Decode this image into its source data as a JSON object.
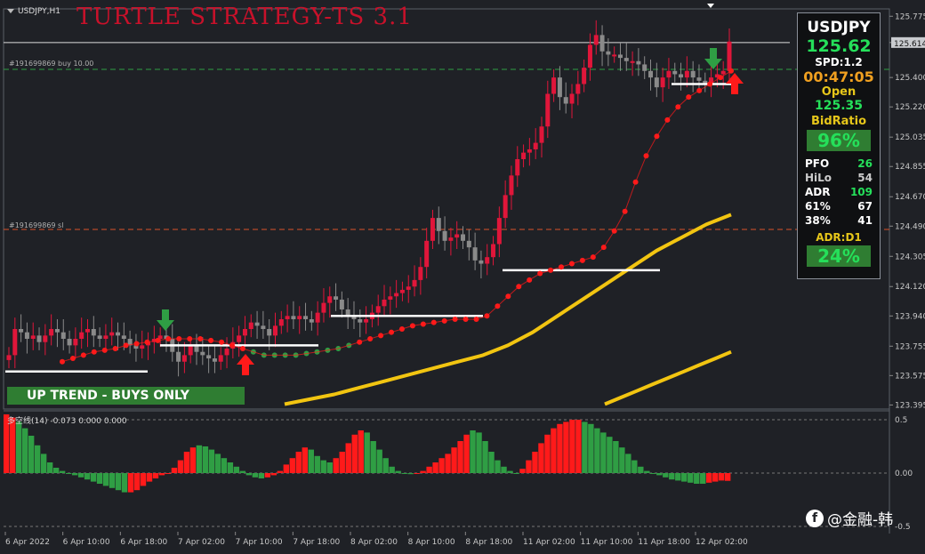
{
  "window": {
    "symbol_title": "USDJPY,H1",
    "strategy_title": "TURTLE STRATEGY-TS 3.1"
  },
  "lines": {
    "buy_label": "#191699869 buy 10.00",
    "sl_label": "#191699869 sl"
  },
  "uptrend_label": "UP TREND - BUYS ONLY",
  "panel": {
    "symbol": "USDJPY",
    "price": "125.62",
    "spread": "SPD:1.2",
    "timer": "00:47:05",
    "open_label": "Open",
    "open_value": "125.35",
    "bidratio_label": "BidRatio",
    "bidratio_value": "96%",
    "rows": [
      {
        "k": "PFO",
        "v": "26",
        "color": "#25e05a"
      },
      {
        "k": "HiLo",
        "v": "54",
        "color": "#cccccc"
      },
      {
        "k": "ADR",
        "v": "109",
        "color": "#25e05a"
      },
      {
        "k": "61%",
        "v": "67",
        "color": "#ffffff"
      },
      {
        "k": "38%",
        "v": "41",
        "color": "#ffffff"
      }
    ],
    "adr_label": "ADR:D1",
    "adr_value": "24%"
  },
  "indicator": {
    "label": "多空线(14) -0.073 0.000 0.000"
  },
  "watermark": {
    "text": "@金融-韩"
  },
  "colors": {
    "bull": "#e0163a",
    "bear": "#8a8a8a",
    "trail": "#ff1a1a",
    "ma": "#f2c511",
    "buy_line": "#2f9e44",
    "sl_line": "#d9532b"
  },
  "chart_data": {
    "type": "candlestick",
    "title": "TURTLE STRATEGY-TS 3.1",
    "symbol": "USDJPY",
    "timeframe": "H1",
    "y_ticks": [
      125.775,
      125.614,
      125.4,
      125.22,
      125.035,
      124.855,
      124.67,
      124.49,
      124.305,
      124.12,
      123.94,
      123.755,
      123.575,
      123.395
    ],
    "current_price_tag": 125.614,
    "x_labels": [
      "6 Apr 2022",
      "6 Apr 10:00",
      "6 Apr 18:00",
      "7 Apr 02:00",
      "7 Apr 10:00",
      "7 Apr 18:00",
      "8 Apr 02:00",
      "8 Apr 10:00",
      "8 Apr 18:00",
      "11 Apr 02:00",
      "11 Apr 10:00",
      "11 Apr 18:00",
      "12 Apr 02:00"
    ],
    "buy_level": 125.45,
    "sl_level": 124.47,
    "closes": [
      123.7,
      123.86,
      123.84,
      123.8,
      123.82,
      123.78,
      123.82,
      123.86,
      123.84,
      123.8,
      123.76,
      123.8,
      123.84,
      123.86,
      123.82,
      123.8,
      123.82,
      123.84,
      123.82,
      123.8,
      123.76,
      123.74,
      123.76,
      123.78,
      123.8,
      123.82,
      123.8,
      123.72,
      123.66,
      123.7,
      123.76,
      123.72,
      123.7,
      123.68,
      123.66,
      123.7,
      123.74,
      123.78,
      123.82,
      123.86,
      123.9,
      123.88,
      123.86,
      123.82,
      123.88,
      123.92,
      123.94,
      123.92,
      123.94,
      123.92,
      123.9,
      123.96,
      124.02,
      124.06,
      124.04,
      123.98,
      123.94,
      123.92,
      123.9,
      123.92,
      123.96,
      124.0,
      124.04,
      124.06,
      124.08,
      124.1,
      124.12,
      124.16,
      124.24,
      124.4,
      124.54,
      124.46,
      124.4,
      124.42,
      124.44,
      124.4,
      124.36,
      124.28,
      124.26,
      124.3,
      124.38,
      124.54,
      124.68,
      124.8,
      124.9,
      124.94,
      124.96,
      125.0,
      125.1,
      125.3,
      125.4,
      125.28,
      125.24,
      125.3,
      125.36,
      125.46,
      125.6,
      125.66,
      125.56,
      125.54,
      125.54,
      125.52,
      125.5,
      125.5,
      125.48,
      125.44,
      125.4,
      125.34,
      125.4,
      125.44,
      125.42,
      125.4,
      125.44,
      125.4,
      125.38,
      125.36,
      125.4,
      125.42,
      125.44,
      125.62
    ],
    "trail_stop": [
      123.66,
      123.68,
      123.7,
      123.72,
      123.73,
      123.74,
      123.76,
      123.77,
      123.78,
      123.79,
      123.8,
      123.8,
      123.8,
      123.8,
      123.79,
      123.78,
      123.76,
      123.74,
      123.72,
      123.7,
      123.7,
      123.7,
      123.7,
      123.71,
      123.72,
      123.73,
      123.74,
      123.76,
      123.78,
      123.8,
      123.82,
      123.84,
      123.86,
      123.88,
      123.89,
      123.9,
      123.91,
      123.92,
      123.92,
      123.92,
      123.94,
      124.0,
      124.06,
      124.12,
      124.16,
      124.2,
      124.22,
      124.24,
      124.26,
      124.28,
      124.3,
      124.36,
      124.46,
      124.58,
      124.76,
      124.92,
      125.04,
      125.14,
      125.22,
      125.28,
      125.32,
      125.36,
      125.4,
      125.44
    ],
    "ma_fast": [
      123.4,
      123.43,
      123.46,
      123.5,
      123.54,
      123.58,
      123.62,
      123.66,
      123.7,
      123.76,
      123.84,
      123.94,
      124.04,
      124.14,
      124.24,
      124.34,
      124.42,
      124.5,
      124.56
    ],
    "ma_slow": [
      123.4,
      123.44,
      123.48,
      123.52,
      123.56,
      123.6,
      123.64,
      123.68,
      123.72
    ],
    "oscillator": {
      "name": "多空线(14)",
      "values_shown": [
        -0.073,
        0.0,
        0.0
      ],
      "levels": [
        0.5,
        0.0,
        -0.5
      ],
      "ylim": [
        -0.55,
        0.55
      ],
      "bars": [
        0.55,
        0.52,
        0.48,
        0.42,
        0.35,
        0.26,
        0.18,
        0.1,
        0.05,
        0.02,
        0.0,
        -0.02,
        -0.04,
        -0.06,
        -0.08,
        -0.1,
        -0.12,
        -0.14,
        -0.16,
        -0.18,
        -0.18,
        -0.16,
        -0.12,
        -0.08,
        -0.05,
        -0.02,
        0.0,
        0.05,
        0.12,
        0.2,
        0.24,
        0.26,
        0.25,
        0.22,
        0.18,
        0.14,
        0.1,
        0.06,
        0.02,
        -0.02,
        -0.04,
        -0.05,
        -0.04,
        -0.02,
        0.02,
        0.08,
        0.14,
        0.2,
        0.24,
        0.22,
        0.16,
        0.12,
        0.1,
        0.14,
        0.2,
        0.28,
        0.36,
        0.4,
        0.38,
        0.3,
        0.22,
        0.14,
        0.06,
        0.02,
        0.0,
        -0.01,
        0.0,
        0.02,
        0.06,
        0.1,
        0.14,
        0.18,
        0.24,
        0.3,
        0.36,
        0.4,
        0.38,
        0.3,
        0.2,
        0.12,
        0.06,
        0.02,
        0.0,
        0.04,
        0.12,
        0.2,
        0.28,
        0.36,
        0.42,
        0.46,
        0.48,
        0.5,
        0.5,
        0.48,
        0.46,
        0.42,
        0.38,
        0.34,
        0.3,
        0.24,
        0.18,
        0.12,
        0.06,
        0.02,
        0.0,
        -0.02,
        -0.04,
        -0.06,
        -0.07,
        -0.08,
        -0.09,
        -0.1,
        -0.1,
        -0.09,
        -0.08,
        -0.07,
        -0.073
      ],
      "bar_colors": [
        "r",
        "r",
        "g",
        "g",
        "g",
        "g",
        "g",
        "g",
        "g",
        "g",
        "g",
        "g",
        "g",
        "g",
        "g",
        "g",
        "g",
        "g",
        "g",
        "g",
        "r",
        "r",
        "r",
        "r",
        "r",
        "r",
        "r",
        "r",
        "r",
        "r",
        "r",
        "g",
        "g",
        "g",
        "g",
        "g",
        "g",
        "g",
        "g",
        "g",
        "g",
        "g",
        "r",
        "r",
        "r",
        "r",
        "r",
        "r",
        "r",
        "g",
        "g",
        "g",
        "g",
        "r",
        "r",
        "r",
        "r",
        "r",
        "g",
        "g",
        "g",
        "g",
        "g",
        "g",
        "g",
        "g",
        "r",
        "r",
        "r",
        "r",
        "r",
        "r",
        "r",
        "r",
        "r",
        "g",
        "g",
        "g",
        "g",
        "g",
        "g",
        "g",
        "g",
        "r",
        "r",
        "r",
        "r",
        "r",
        "r",
        "r",
        "r",
        "r",
        "r",
        "g",
        "g",
        "g",
        "g",
        "g",
        "g",
        "g",
        "g",
        "g",
        "g",
        "g",
        "g",
        "g",
        "g",
        "g",
        "g",
        "g",
        "g",
        "g",
        "g",
        "r",
        "r",
        "r",
        "r"
      ]
    }
  }
}
